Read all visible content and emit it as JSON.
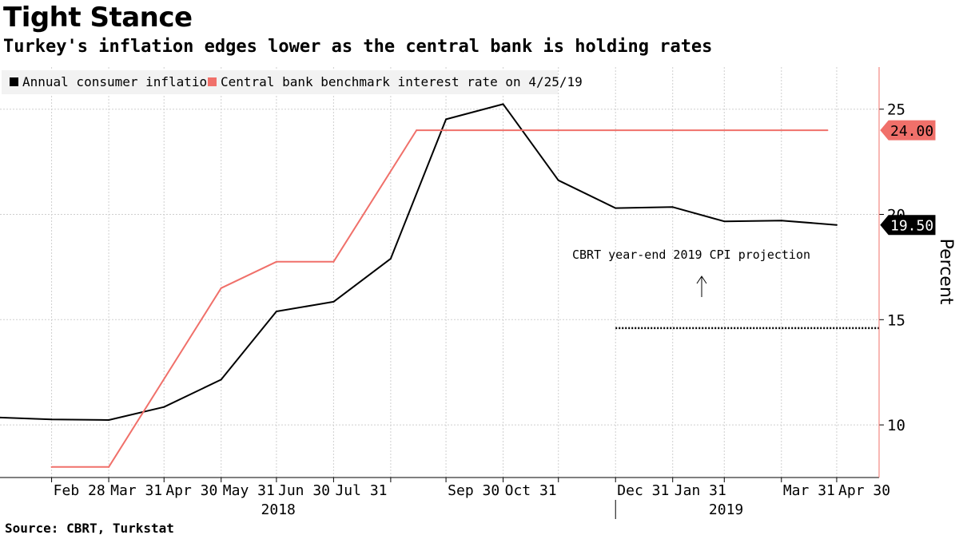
{
  "header": {
    "title": "Tight Stance",
    "subtitle": "Turkey's inflation edges lower as the central bank is holding rates"
  },
  "source": "Source: CBRT, Turkstat",
  "colors": {
    "inflation": "#000000",
    "rate": "#f0706a",
    "grid": "#cfcfcf",
    "legend_bg": "#f2f2f2"
  },
  "chart_data": {
    "type": "line",
    "title": "Tight Stance",
    "subtitle": "Turkey's inflation edges lower as the central bank is holding rates",
    "ylabel": "Percent",
    "ylim": [
      7.5,
      27
    ],
    "yticks": [
      10,
      15,
      20,
      25
    ],
    "x_tick_labels": [
      "Feb 28",
      "Mar 31",
      "Apr 30",
      "May 31",
      "Jun 30",
      "Jul 31",
      "Sep 30",
      "Oct 31",
      "Dec 31",
      "Jan 31",
      "Mar 31",
      "Apr 30"
    ],
    "x_tick_dates": [
      "2018-02-28",
      "2018-03-31",
      "2018-04-30",
      "2018-05-31",
      "2018-06-30",
      "2018-07-31",
      "2018-09-30",
      "2018-10-31",
      "2018-12-31",
      "2019-01-31",
      "2019-03-31",
      "2019-04-30"
    ],
    "minor_tick_dates": [
      "2018-08-31",
      "2018-11-30",
      "2019-02-28"
    ],
    "year_labels": [
      {
        "label": "2018",
        "date": "2018-07-01"
      },
      {
        "label": "2019",
        "date": "2019-03-01"
      }
    ],
    "year_divider_date": "2018-12-31",
    "grid": true,
    "legend_position": "top-left",
    "series": [
      {
        "name": "Annual consumer inflation",
        "color": "#000000",
        "last_value_label": "19.50",
        "points": [
          {
            "x": "2018-01-31",
            "y": 10.35
          },
          {
            "x": "2018-02-28",
            "y": 10.26
          },
          {
            "x": "2018-03-31",
            "y": 10.23
          },
          {
            "x": "2018-04-30",
            "y": 10.85
          },
          {
            "x": "2018-05-31",
            "y": 12.15
          },
          {
            "x": "2018-06-30",
            "y": 15.39
          },
          {
            "x": "2018-07-31",
            "y": 15.85
          },
          {
            "x": "2018-08-31",
            "y": 17.9
          },
          {
            "x": "2018-09-30",
            "y": 24.52
          },
          {
            "x": "2018-10-31",
            "y": 25.24
          },
          {
            "x": "2018-11-30",
            "y": 21.62
          },
          {
            "x": "2018-12-31",
            "y": 20.3
          },
          {
            "x": "2019-01-31",
            "y": 20.35
          },
          {
            "x": "2019-02-28",
            "y": 19.67
          },
          {
            "x": "2019-03-31",
            "y": 19.71
          },
          {
            "x": "2019-04-30",
            "y": 19.5
          }
        ]
      },
      {
        "name": "Central bank benchmark interest rate on 4/25/19",
        "color": "#f0706a",
        "last_value_label": "24.00",
        "points": [
          {
            "x": "2018-02-28",
            "y": 8.0
          },
          {
            "x": "2018-03-31",
            "y": 8.0
          },
          {
            "x": "2018-05-31",
            "y": 16.5
          },
          {
            "x": "2018-06-30",
            "y": 17.75
          },
          {
            "x": "2018-07-31",
            "y": 17.75
          },
          {
            "x": "2018-09-14",
            "y": 24.0
          },
          {
            "x": "2019-04-25",
            "y": 24.0
          }
        ]
      }
    ],
    "annotations": [
      {
        "text": "CBRT year-end 2019 CPI projection",
        "y": 14.6,
        "x_start": "2018-12-31"
      }
    ]
  }
}
